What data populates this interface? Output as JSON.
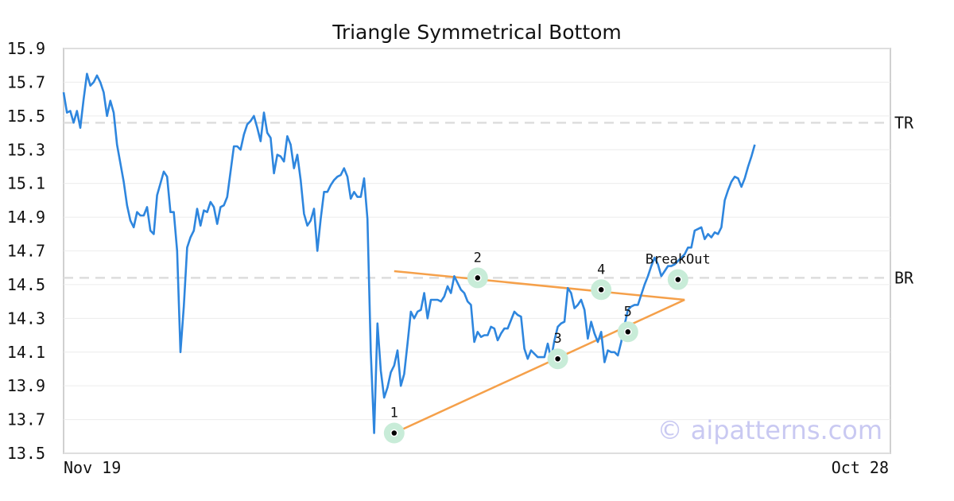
{
  "chart_data": {
    "type": "line",
    "title": "Triangle Symmetrical Bottom",
    "xlabel": "",
    "ylabel": "",
    "ylim": [
      13.5,
      15.9
    ],
    "yticks": [
      "13.5",
      "13.7",
      "13.9",
      "14.1",
      "14.3",
      "14.5",
      "14.7",
      "14.9",
      "15.1",
      "15.3",
      "15.5",
      "15.7",
      "15.9"
    ],
    "x_tick_labels": [
      "Nov 19",
      "Oct 28"
    ],
    "grid": "horizontal",
    "colors": {
      "price": "#2e86de",
      "trend": "#f5a04a",
      "marker_halo": "#c8ecd8",
      "marker_dot": "#000000",
      "reference": "#dddddd",
      "frame": "#d0d0d0",
      "grid": "#ececec"
    },
    "series": [
      {
        "values": [
          15.64,
          15.52,
          15.53,
          15.46,
          15.53,
          15.43,
          15.6,
          15.75,
          15.68,
          15.7,
          15.74,
          15.7,
          15.64,
          15.5,
          15.59,
          15.52,
          15.33,
          15.22,
          15.11,
          14.97,
          14.88,
          14.84,
          14.93,
          14.91,
          14.91,
          14.96,
          14.82,
          14.8,
          15.03,
          15.1,
          15.17,
          15.14,
          14.93,
          14.93,
          14.7,
          14.1,
          14.37,
          14.72,
          14.78,
          14.82,
          14.95,
          14.85,
          14.94,
          14.93,
          14.99,
          14.96,
          14.86,
          14.96,
          14.97,
          15.02,
          15.17,
          15.32,
          15.32,
          15.3,
          15.39,
          15.45,
          15.47,
          15.5,
          15.43,
          15.35,
          15.52,
          15.4,
          15.37,
          15.16,
          15.27,
          15.26,
          15.23,
          15.38,
          15.33,
          15.19,
          15.27,
          15.12,
          14.92,
          14.85,
          14.88,
          14.95,
          14.7,
          14.89,
          15.05,
          15.05,
          15.09,
          15.12,
          15.14,
          15.15,
          15.19,
          15.14,
          15.01,
          15.05,
          15.02,
          15.02,
          15.13,
          14.89,
          14.1,
          13.62,
          14.27,
          13.99,
          13.83,
          13.89,
          13.98,
          14.02,
          14.11,
          13.9,
          13.97,
          14.15,
          14.34,
          14.3,
          14.34,
          14.35,
          14.45,
          14.3,
          14.41,
          14.41,
          14.41,
          14.4,
          14.43,
          14.49,
          14.45,
          14.55,
          14.51,
          14.47,
          14.45,
          14.4,
          14.38,
          14.16,
          14.22,
          14.19,
          14.2,
          14.2,
          14.25,
          14.24,
          14.17,
          14.21,
          14.24,
          14.24,
          14.29,
          14.34,
          14.32,
          14.31,
          14.12,
          14.06,
          14.11,
          14.09,
          14.07,
          14.07,
          14.07,
          14.15,
          14.06,
          14.17,
          14.25,
          14.27,
          14.28,
          14.48,
          14.45,
          14.36,
          14.38,
          14.41,
          14.35,
          14.18,
          14.28,
          14.21,
          14.16,
          14.22,
          14.04,
          14.11,
          14.1,
          14.1,
          14.08,
          14.16,
          14.26,
          14.35,
          14.37,
          14.38,
          14.38,
          14.44,
          14.5,
          14.55,
          14.61,
          14.66,
          14.62,
          14.55,
          14.58,
          14.61,
          14.61,
          14.62,
          14.64,
          14.66,
          14.68,
          14.72,
          14.72,
          14.82,
          14.83,
          14.84,
          14.77,
          14.8,
          14.78,
          14.81,
          14.8,
          14.84,
          15.0,
          15.06,
          15.11,
          15.14,
          15.13,
          15.08,
          15.13,
          15.2,
          15.26,
          15.33
        ]
      }
    ],
    "reference_lines": [
      {
        "label": "TR",
        "y": 15.46
      },
      {
        "label": "BR",
        "y": 14.54
      }
    ],
    "trendlines": [
      {
        "from": [
          99,
          14.58
        ],
        "to": [
          186,
          14.41
        ]
      },
      {
        "from": [
          99,
          13.62
        ],
        "to": [
          186,
          14.41
        ]
      }
    ],
    "markers": [
      {
        "label": "1",
        "x": 99,
        "y": 13.62
      },
      {
        "label": "2",
        "x": 124,
        "y": 14.54
      },
      {
        "label": "3",
        "x": 148,
        "y": 14.06
      },
      {
        "label": "4",
        "x": 161,
        "y": 14.47
      },
      {
        "label": "5",
        "x": 169,
        "y": 14.22
      },
      {
        "label": "BreakOut",
        "x": 184,
        "y": 14.53
      }
    ],
    "n_slots": 248
  },
  "watermark": "© aipatterns.com"
}
